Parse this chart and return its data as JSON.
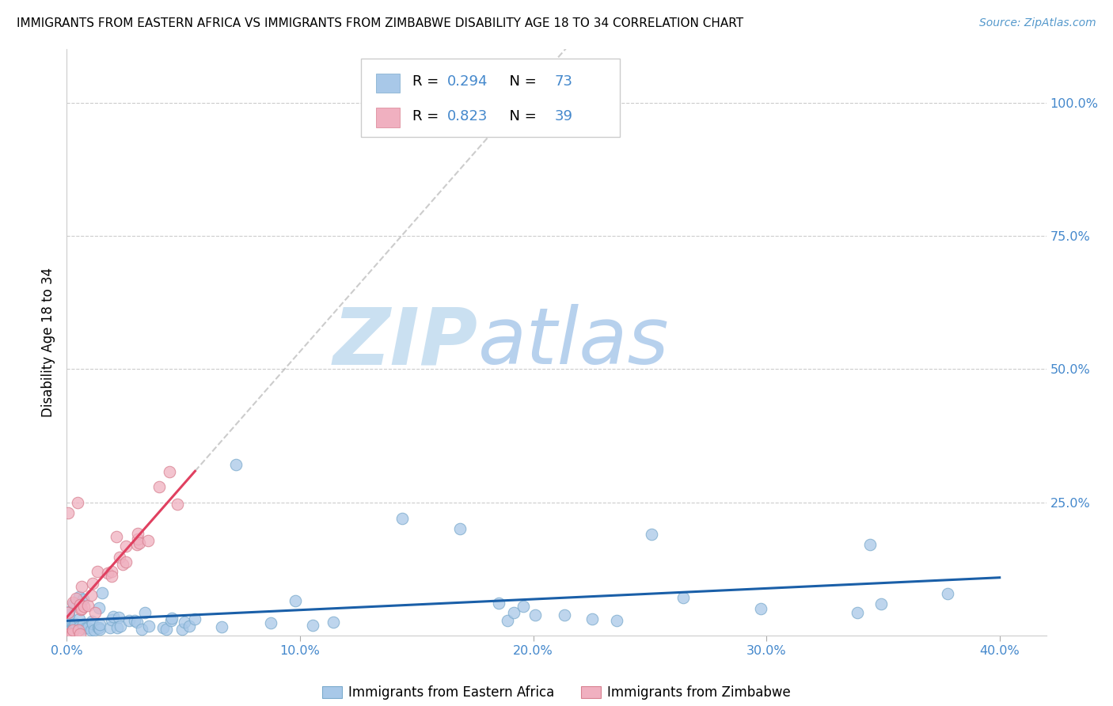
{
  "title": "IMMIGRANTS FROM EASTERN AFRICA VS IMMIGRANTS FROM ZIMBABWE DISABILITY AGE 18 TO 34 CORRELATION CHART",
  "source": "Source: ZipAtlas.com",
  "ylabel": "Disability Age 18 to 34",
  "xlim": [
    0.0,
    0.42
  ],
  "ylim": [
    0.0,
    1.1
  ],
  "xtick_labels": [
    "0.0%",
    "10.0%",
    "20.0%",
    "30.0%",
    "40.0%"
  ],
  "xtick_vals": [
    0.0,
    0.1,
    0.2,
    0.3,
    0.4
  ],
  "ytick_labels": [
    "25.0%",
    "50.0%",
    "75.0%",
    "100.0%"
  ],
  "ytick_vals": [
    0.25,
    0.5,
    0.75,
    1.0
  ],
  "blue_color": "#a8c8e8",
  "blue_edge_color": "#7aaacc",
  "blue_line_color": "#1a5fa8",
  "pink_color": "#f0b0c0",
  "pink_edge_color": "#d88090",
  "pink_line_color": "#e04060",
  "R_blue": 0.294,
  "N_blue": 73,
  "R_pink": 0.823,
  "N_pink": 39,
  "legend_label_blue": "Immigrants from Eastern Africa",
  "legend_label_pink": "Immigrants from Zimbabwe",
  "watermark_zip": "ZIP",
  "watermark_atlas": "atlas",
  "watermark_color_zip": "#c0d8f0",
  "watermark_color_atlas": "#a0c0e0"
}
